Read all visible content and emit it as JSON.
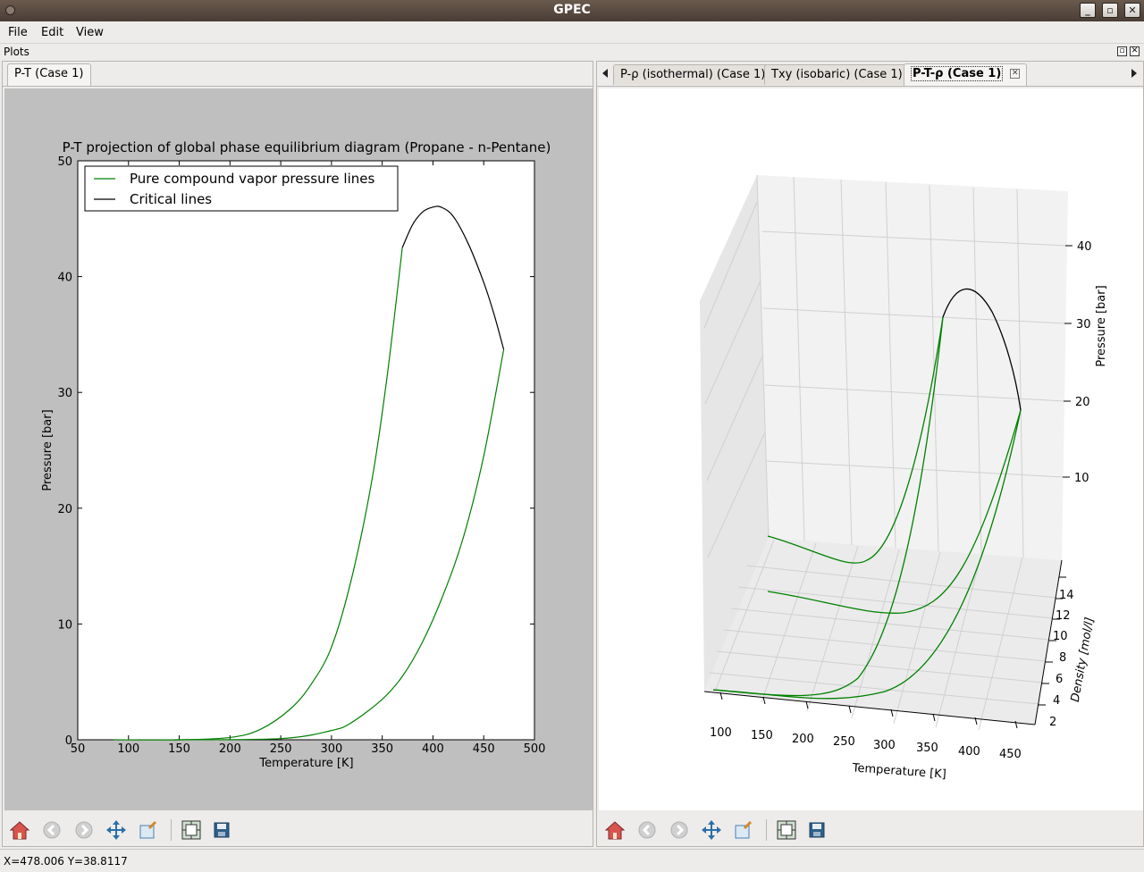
{
  "window": {
    "title": "GPEC"
  },
  "menu": {
    "file": "File",
    "edit": "Edit",
    "view": "View"
  },
  "dock": {
    "title": "Plots"
  },
  "left_panel": {
    "tab": "P-T (Case 1)"
  },
  "right_panel": {
    "tabs": [
      "P-ρ (isothermal) (Case 1)",
      "Txy (isobaric) (Case 1)",
      "P-T-ρ (Case 1)"
    ],
    "active_tab": 2
  },
  "status": {
    "text": "X=478.006 Y=38.8117"
  },
  "colors": {
    "pure_line": "#008000",
    "critical_line": "#000000",
    "plot_bg_left": "#bfbfbf"
  },
  "icons": [
    "home-icon",
    "back-icon",
    "forward-icon",
    "pan-icon",
    "zoom-icon",
    "subplots-icon",
    "save-icon"
  ],
  "chart_data": [
    {
      "type": "line",
      "title": "P-T projection of global phase equilibrium diagram (Propane - n-Pentane)",
      "xlabel": "Temperature [K]",
      "ylabel": "Pressure [bar]",
      "xlim": [
        50,
        500
      ],
      "ylim": [
        0,
        50
      ],
      "xticks": [
        "50",
        "100",
        "150",
        "200",
        "250",
        "300",
        "350",
        "400",
        "450",
        "500"
      ],
      "yticks": [
        "0",
        "10",
        "20",
        "30",
        "40",
        "50"
      ],
      "legend_position": "top-left",
      "legend": [
        "Pure compound vapor pressure lines",
        "Critical lines"
      ],
      "series": [
        {
          "name": "Pure compound vapor pressure lines",
          "color": "#008000",
          "x": [
            85,
            150,
            200,
            230,
            260,
            280,
            300,
            320,
            340,
            355,
            369.8
          ],
          "y": [
            0,
            0,
            0.2,
            0.9,
            2.7,
            4.8,
            8.0,
            14.0,
            22.5,
            31.5,
            42.5
          ]
        },
        {
          "name": "Pure compound vapor pressure lines",
          "color": "#008000",
          "x": [
            145,
            250,
            300,
            320,
            350,
            370,
            390,
            410,
            430,
            450,
            469.7
          ],
          "y": [
            0,
            0.1,
            0.8,
            1.5,
            3.5,
            5.5,
            8.5,
            12.5,
            17.5,
            24.5,
            33.7
          ]
        },
        {
          "name": "Critical lines",
          "color": "#000000",
          "x": [
            369.8,
            380,
            390,
            400,
            408,
            420,
            435,
            450,
            460,
            469.7
          ],
          "y": [
            42.5,
            44.5,
            45.6,
            46.0,
            46.0,
            45.2,
            42.8,
            39.5,
            36.8,
            33.7
          ]
        }
      ]
    },
    {
      "type": "line",
      "title": "",
      "xlabel": "Temperature [K]",
      "ylabel": "Density [mol/l]",
      "zlabel": "Pressure [bar]",
      "xticks": [
        "100",
        "150",
        "200",
        "250",
        "300",
        "350",
        "400",
        "450"
      ],
      "yticks": [
        "2",
        "4",
        "6",
        "8",
        "10",
        "12",
        "14"
      ],
      "zticks": [
        "10",
        "20",
        "30",
        "40"
      ],
      "grid": true
    }
  ]
}
